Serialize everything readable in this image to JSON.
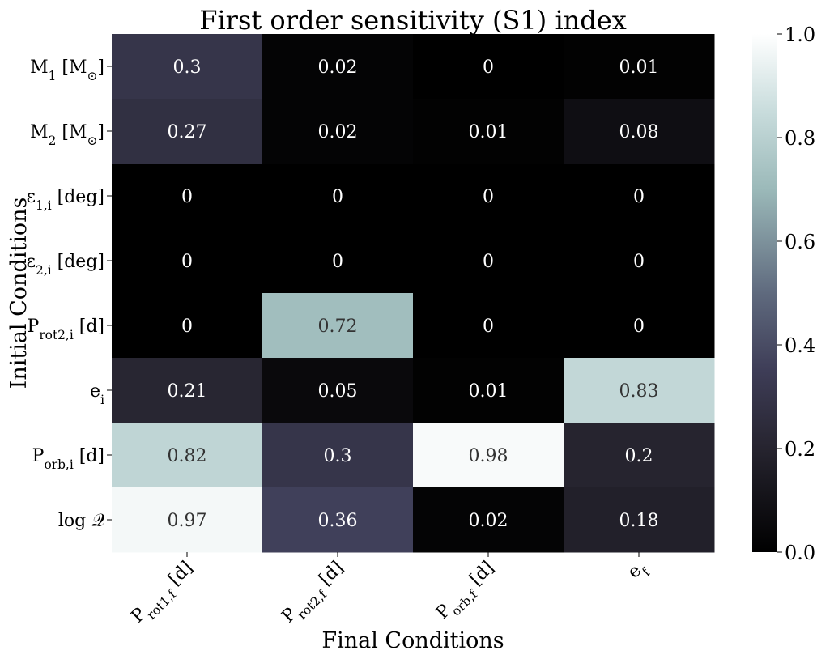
{
  "chart_data": {
    "type": "heatmap",
    "title": "First order sensitivity (S1) index",
    "xlabel": "Final Conditions",
    "ylabel": "Initial Conditions",
    "columns": [
      {
        "base": "P",
        "sub": "rot1,f",
        "suffix": " [d]"
      },
      {
        "base": "P",
        "sub": "rot2,f",
        "suffix": " [d]"
      },
      {
        "base": "P",
        "sub": "orb,f",
        "suffix": " [d]"
      },
      {
        "base": "e",
        "sub": "f",
        "suffix": ""
      }
    ],
    "rows": [
      {
        "base": "M",
        "sub": "1",
        "suffix": " [M",
        "sub2": "⊙",
        "suffix2": "]"
      },
      {
        "base": "M",
        "sub": "2",
        "suffix": " [M",
        "sub2": "⊙",
        "suffix2": "]"
      },
      {
        "base": "ε",
        "sub": "1,i",
        "suffix": " [deg]"
      },
      {
        "base": "ε",
        "sub": "2,i",
        "suffix": " [deg]"
      },
      {
        "base": "P",
        "sub": "rot2,i",
        "suffix": " [d]"
      },
      {
        "base": "e",
        "sub": "i",
        "suffix": ""
      },
      {
        "base": "P",
        "sub": "orb,i",
        "suffix": " [d]"
      },
      {
        "base": "log ",
        "sub": "",
        "suffix": "𝒬"
      }
    ],
    "values": [
      [
        0.3,
        0.02,
        0.0,
        0.01
      ],
      [
        0.27,
        0.02,
        0.01,
        0.08
      ],
      [
        0.0,
        0.0,
        0.0,
        0.0
      ],
      [
        0.0,
        0.0,
        0.0,
        0.0
      ],
      [
        0.0,
        0.72,
        0.0,
        0.0
      ],
      [
        0.21,
        0.05,
        0.01,
        0.83
      ],
      [
        0.82,
        0.3,
        0.98,
        0.2
      ],
      [
        0.97,
        0.36,
        0.02,
        0.18
      ]
    ],
    "labels": [
      [
        "0.3",
        "0.02",
        "0",
        "0.01"
      ],
      [
        "0.27",
        "0.02",
        "0.01",
        "0.08"
      ],
      [
        "0",
        "0",
        "0",
        "0"
      ],
      [
        "0",
        "0",
        "0",
        "0"
      ],
      [
        "0",
        "0.72",
        "0",
        "0"
      ],
      [
        "0.21",
        "0.05",
        "0.01",
        "0.83"
      ],
      [
        "0.82",
        "0.3",
        "0.98",
        "0.2"
      ],
      [
        "0.97",
        "0.36",
        "0.02",
        "0.18"
      ]
    ],
    "colorbar": {
      "range": [
        0.0,
        1.0
      ],
      "ticks": [
        0.0,
        0.2,
        0.4,
        0.6,
        0.8,
        1.0
      ],
      "tick_labels": [
        "0.0",
        "0.2",
        "0.4",
        "0.6",
        "0.8",
        "1.0"
      ],
      "colormap": "bone",
      "stops": [
        {
          "v": 0.0,
          "color": "#000000"
        },
        {
          "v": 0.2,
          "color": "#26242f"
        },
        {
          "v": 0.35,
          "color": "#3e3d57"
        },
        {
          "v": 0.5,
          "color": "#5f6a7e"
        },
        {
          "v": 0.7,
          "color": "#9bb9b9"
        },
        {
          "v": 0.85,
          "color": "#c8dcdc"
        },
        {
          "v": 1.0,
          "color": "#ffffff"
        }
      ]
    },
    "text_colors": {
      "dark_bg": "#ffffff",
      "light_bg": "#333333"
    }
  }
}
